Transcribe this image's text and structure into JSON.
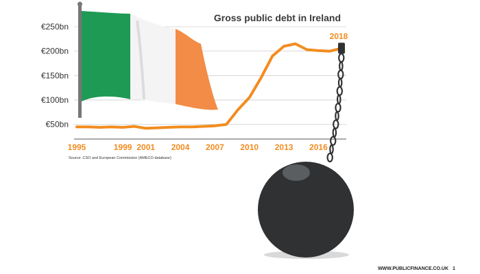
{
  "chart_data": {
    "type": "line",
    "title": "Gross public debt in Ireland",
    "xlabel": "",
    "ylabel": "",
    "x": [
      1995,
      1996,
      1997,
      1998,
      1999,
      2000,
      2001,
      2002,
      2003,
      2004,
      2005,
      2006,
      2007,
      2008,
      2009,
      2010,
      2011,
      2012,
      2013,
      2014,
      2015,
      2016,
      2017,
      2018
    ],
    "series": [
      {
        "values": [
          45,
          45,
          44,
          45,
          44,
          46,
          42,
          43,
          44,
          45,
          45,
          46,
          47,
          50,
          80,
          105,
          145,
          190,
          210,
          215,
          203,
          201,
          200,
          206
        ]
      }
    ],
    "x_tick_labels": [
      "1995",
      "1999",
      "2001",
      "2004",
      "2007",
      "2010",
      "2013",
      "2016"
    ],
    "x_tick_values": [
      1995,
      1999,
      2001,
      2004,
      2007,
      2010,
      2013,
      2016
    ],
    "y_ticks": [
      {
        "value": 50,
        "label": "€50bn"
      },
      {
        "value": 100,
        "label": "€100bn"
      },
      {
        "value": 150,
        "label": "€150bn"
      },
      {
        "value": 200,
        "label": "€200bn"
      },
      {
        "value": 250,
        "label": "€250bn"
      }
    ],
    "xlim": [
      1995,
      2018
    ],
    "ylim": [
      20,
      250
    ],
    "end_label": "2018",
    "grid": "horizontal",
    "line_color": "#f28c1e",
    "source": "Source: CSO and European Commission (AMECO database)"
  },
  "footer": {
    "site": "WWW.PUBLICFINANCE.CO.UK",
    "page_number": "1"
  },
  "decor": {
    "flag_colors": [
      "#1e9a55",
      "#f4f4f4",
      "#f28c46"
    ],
    "pole_color": "#777777",
    "ball_color": "#2f3133",
    "chain_color": "#2f3133",
    "icons": [
      "irish-flag-icon",
      "ball-and-chain-icon"
    ]
  }
}
